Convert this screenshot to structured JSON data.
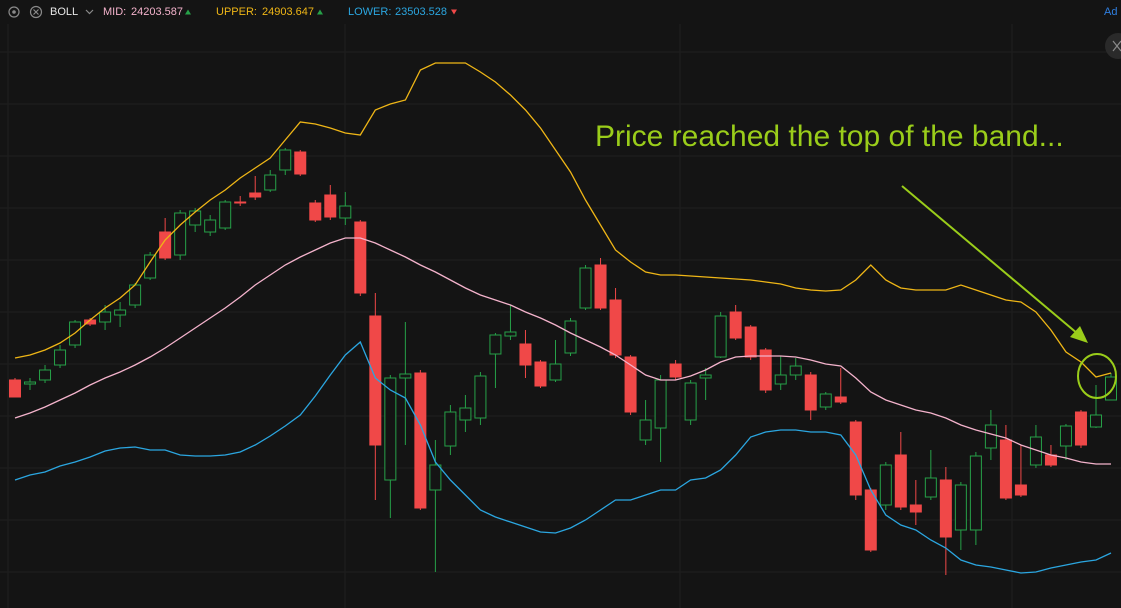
{
  "chart_data": {
    "type": "candlestick",
    "indicator": "BOLL",
    "add_label": "Ad",
    "annotation": "Price reached the top of the band...",
    "categories": [
      null,
      null,
      null,
      null,
      null,
      null,
      null,
      null,
      null,
      null,
      null,
      null,
      null,
      null,
      null,
      null,
      null,
      null,
      null,
      null,
      null,
      null,
      null,
      null,
      null,
      null,
      null,
      null,
      null,
      null,
      null,
      null,
      null,
      null,
      null,
      null,
      null,
      null,
      null,
      null,
      null,
      null,
      null,
      null,
      null,
      null,
      null,
      null,
      null,
      null,
      null,
      null,
      null,
      null,
      null,
      null,
      null,
      null,
      null,
      null,
      null,
      null,
      null,
      null,
      null,
      null,
      null,
      null,
      null,
      null,
      null,
      null,
      null,
      null
    ],
    "ylim": [
      23036,
      27900
    ],
    "up_color": "#26a148",
    "down_color": "#f04848",
    "open": [
      24860,
      24828,
      24860,
      24980,
      25140,
      25340,
      25324,
      25380,
      25460,
      25676,
      26044,
      25860,
      26100,
      26044,
      26076,
      26284,
      26356,
      26380,
      26540,
      26684,
      26276,
      26340,
      26156,
      26124,
      25372,
      24060,
      24876,
      24916,
      23980,
      24332,
      24540,
      24556,
      25068,
      25212,
      25148,
      25004,
      24860,
      25076,
      25436,
      25780,
      25500,
      25044,
      24380,
      24476,
      24988,
      24540,
      24876,
      25044,
      25404,
      25284,
      25100,
      24828,
      24900,
      24900,
      24644,
      24724,
      24524,
      23980,
      23860,
      24260,
      23860,
      23924,
      24060,
      23660,
      23660,
      24316,
      24380,
      24020,
      24180,
      24260,
      24332,
      24604,
      24484,
      24700
    ],
    "high": [
      24876,
      24876,
      24980,
      25140,
      25340,
      25356,
      25460,
      25484,
      25636,
      25884,
      26156,
      26220,
      26236,
      26180,
      26300,
      26332,
      26492,
      26540,
      26716,
      26700,
      26300,
      26420,
      26364,
      26140,
      25556,
      24900,
      25324,
      24940,
      24380,
      24660,
      24740,
      24924,
      25236,
      25460,
      25260,
      25020,
      25180,
      25356,
      25780,
      25836,
      25596,
      25060,
      24700,
      24900,
      25020,
      24860,
      24956,
      25404,
      25460,
      25300,
      25116,
      25052,
      25036,
      24924,
      24764,
      24956,
      24540,
      23996,
      24204,
      24444,
      24060,
      24300,
      24164,
      24044,
      24284,
      24620,
      24500,
      24340,
      24500,
      24340,
      24508,
      24620,
      24820,
      24916
    ],
    "low": [
      24724,
      24780,
      24836,
      24956,
      25116,
      25292,
      25260,
      25284,
      25436,
      25660,
      25820,
      25820,
      26044,
      26012,
      26060,
      26252,
      26300,
      26364,
      26500,
      26492,
      26124,
      26140,
      26100,
      25532,
      23900,
      23756,
      24340,
      23820,
      23324,
      24260,
      24444,
      24500,
      24796,
      25180,
      24876,
      24796,
      24844,
      25052,
      25420,
      25420,
      25036,
      24580,
      24340,
      24204,
      24860,
      24500,
      24700,
      25036,
      25180,
      25020,
      24756,
      24780,
      24860,
      24540,
      24620,
      24668,
      23900,
      23484,
      23820,
      23820,
      23700,
      23900,
      23300,
      23500,
      23540,
      24220,
      23900,
      23924,
      24156,
      24164,
      24220,
      24316,
      24476,
      24700
    ],
    "close": [
      24724,
      24844,
      24940,
      25100,
      25324,
      25308,
      25404,
      25420,
      25620,
      25860,
      25836,
      26196,
      26212,
      26140,
      26284,
      26276,
      26324,
      26500,
      26700,
      26508,
      26140,
      26164,
      26252,
      25556,
      24340,
      24876,
      24908,
      23836,
      24180,
      24604,
      24636,
      24892,
      25220,
      25244,
      24980,
      24812,
      24988,
      25332,
      25756,
      25436,
      25060,
      24604,
      24540,
      24860,
      24884,
      24836,
      24900,
      25372,
      25196,
      25044,
      24780,
      24900,
      24972,
      24620,
      24748,
      24684,
      23940,
      23500,
      24180,
      23844,
      23804,
      24076,
      23604,
      24020,
      24252,
      24500,
      23916,
      23940,
      24404,
      24180,
      24492,
      24340,
      24580,
      24884
    ],
    "series": [
      {
        "name": "MID:",
        "color": "#f4b3cc",
        "current": 24203.587,
        "values": [
          24556,
          24596,
          24644,
          24700,
          24756,
          24820,
          24876,
          24924,
          24980,
          25044,
          25116,
          25196,
          25276,
          25356,
          25436,
          25524,
          25620,
          25700,
          25780,
          25844,
          25900,
          25956,
          25996,
          25996,
          25956,
          25900,
          25844,
          25780,
          25724,
          25660,
          25596,
          25540,
          25500,
          25460,
          25404,
          25356,
          25300,
          25236,
          25180,
          25124,
          25060,
          24980,
          24900,
          24860,
          24860,
          24892,
          24940,
          25004,
          25044,
          25052,
          25052,
          25052,
          25044,
          25020,
          24988,
          24972,
          24876,
          24764,
          24700,
          24660,
          24620,
          24596,
          24556,
          24500,
          24460,
          24428,
          24396,
          24340,
          24300,
          24260,
          24236,
          24204,
          24188,
          24188
        ]
      },
      {
        "name": "UPPER:",
        "color": "#efb616",
        "current": 24903.647,
        "values": [
          25036,
          25060,
          25100,
          25156,
          25236,
          25340,
          25436,
          25516,
          25620,
          25804,
          25980,
          26100,
          26204,
          26300,
          26380,
          26476,
          26556,
          26636,
          26780,
          26924,
          26908,
          26876,
          26836,
          26820,
          27020,
          27068,
          27100,
          27340,
          27396,
          27396,
          27396,
          27324,
          27244,
          27140,
          27020,
          26876,
          26700,
          26524,
          26300,
          26100,
          25900,
          25804,
          25724,
          25700,
          25700,
          25692,
          25684,
          25676,
          25668,
          25660,
          25644,
          25628,
          25596,
          25580,
          25572,
          25580,
          25660,
          25780,
          25660,
          25596,
          25580,
          25580,
          25580,
          25620,
          25580,
          25540,
          25500,
          25484,
          25404,
          25260,
          25084,
          25004,
          24884,
          24916
        ]
      },
      {
        "name": "LOWER:",
        "color": "#2ba6e0",
        "current": 23503.528,
        "values": [
          24060,
          24100,
          24124,
          24172,
          24204,
          24244,
          24292,
          24316,
          24324,
          24300,
          24300,
          24260,
          24252,
          24252,
          24260,
          24284,
          24340,
          24412,
          24492,
          24580,
          24732,
          24900,
          25060,
          25164,
          24876,
          24780,
          24716,
          24500,
          24204,
          24060,
          23940,
          23820,
          23764,
          23724,
          23684,
          23644,
          23636,
          23676,
          23740,
          23820,
          23900,
          23900,
          23940,
          23980,
          23980,
          24060,
          24076,
          24140,
          24260,
          24404,
          24444,
          24460,
          24460,
          24444,
          24444,
          24420,
          24260,
          23980,
          23780,
          23700,
          23660,
          23580,
          23516,
          23420,
          23380,
          23364,
          23340,
          23316,
          23324,
          23356,
          23380,
          23404,
          23420,
          23476
        ]
      }
    ]
  }
}
